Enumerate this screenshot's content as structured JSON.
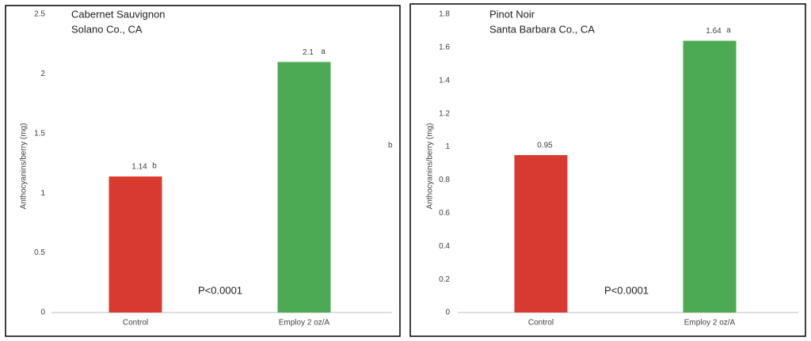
{
  "chart_data": [
    {
      "type": "bar",
      "title": "Cabernet Sauvignon",
      "subtitle": "Solano Co., CA",
      "y_label": "Anthocyanins/berry (mg)",
      "categories": [
        "Control",
        "Employ 2 oz/A"
      ],
      "values": [
        1.14,
        2.1
      ],
      "letters": [
        "b",
        "a"
      ],
      "colors": [
        "#d93a2f",
        "#4caa55"
      ],
      "ylim": [
        0,
        2.5
      ],
      "yticks": [
        0,
        0.5,
        1,
        1.5,
        2,
        2.5
      ],
      "grid": false,
      "annotations": [
        "P<0.0001",
        "b"
      ]
    },
    {
      "type": "bar",
      "title": "Pinot Noir",
      "subtitle": "Santa Barbara Co., CA",
      "y_label": "Anthocyanins/berry (mg)",
      "categories": [
        "Control",
        "Employ 2 oz/A"
      ],
      "values": [
        0.95,
        1.64
      ],
      "letters": [
        null,
        "a"
      ],
      "colors": [
        "#d93a2f",
        "#4caa55"
      ],
      "ylim": [
        0,
        1.8
      ],
      "yticks": [
        0,
        0.2,
        0.4,
        0.6,
        0.8,
        1,
        1.2,
        1.4,
        1.6,
        1.8
      ],
      "grid": false,
      "annotations": [
        "P<0.0001"
      ]
    }
  ]
}
